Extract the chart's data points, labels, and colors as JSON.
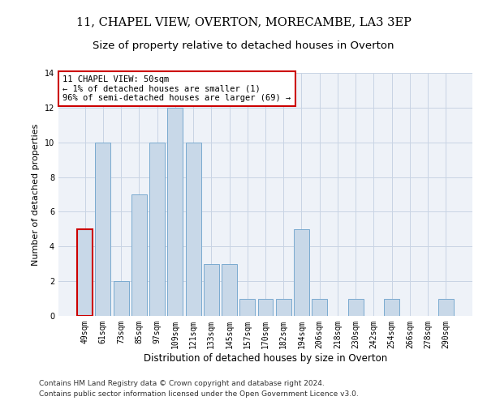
{
  "title": "11, CHAPEL VIEW, OVERTON, MORECAMBE, LA3 3EP",
  "subtitle": "Size of property relative to detached houses in Overton",
  "xlabel": "Distribution of detached houses by size in Overton",
  "ylabel": "Number of detached properties",
  "categories": [
    "49sqm",
    "61sqm",
    "73sqm",
    "85sqm",
    "97sqm",
    "109sqm",
    "121sqm",
    "133sqm",
    "145sqm",
    "157sqm",
    "170sqm",
    "182sqm",
    "194sqm",
    "206sqm",
    "218sqm",
    "230sqm",
    "242sqm",
    "254sqm",
    "266sqm",
    "278sqm",
    "290sqm"
  ],
  "values": [
    5,
    10,
    2,
    7,
    10,
    12,
    10,
    3,
    3,
    1,
    1,
    1,
    5,
    1,
    0,
    1,
    0,
    1,
    0,
    0,
    1
  ],
  "bar_color": "#c8d8e8",
  "bar_edge_color": "#7aaad0",
  "highlight_bar_index": 0,
  "highlight_bar_edge_color": "#cc0000",
  "annotation_text": "11 CHAPEL VIEW: 50sqm\n← 1% of detached houses are smaller (1)\n96% of semi-detached houses are larger (69) →",
  "ylim": [
    0,
    14
  ],
  "yticks": [
    0,
    2,
    4,
    6,
    8,
    10,
    12,
    14
  ],
  "grid_color": "#c8d4e4",
  "background_color": "#eef2f8",
  "footer_line1": "Contains HM Land Registry data © Crown copyright and database right 2024.",
  "footer_line2": "Contains public sector information licensed under the Open Government Licence v3.0.",
  "title_fontsize": 10.5,
  "subtitle_fontsize": 9.5,
  "xlabel_fontsize": 8.5,
  "ylabel_fontsize": 8,
  "tick_fontsize": 7,
  "annotation_fontsize": 7.5,
  "footer_fontsize": 6.5
}
